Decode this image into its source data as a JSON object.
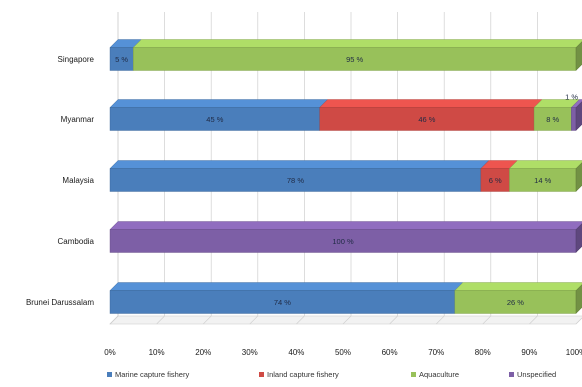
{
  "chart_data": {
    "type": "bar",
    "orientation": "horizontal",
    "stacked": "percent",
    "three_d": true,
    "categories": [
      "Singapore",
      "Myanmar",
      "Malaysia",
      "Cambodia",
      "Brunei Darussalam"
    ],
    "series": [
      {
        "name": "Marine capture fishery",
        "color": "#4a7ebb",
        "values": [
          5,
          45,
          78,
          0,
          74
        ],
        "labels": [
          "5 %",
          "45 %",
          "78 %",
          "",
          "74 %"
        ]
      },
      {
        "name": "Inland capture fishery",
        "color": "#cf4a45",
        "values": [
          0,
          46,
          6,
          0,
          0
        ],
        "labels": [
          "",
          "46 %",
          "6 %",
          "",
          ""
        ]
      },
      {
        "name": "Aquaculture",
        "color": "#98c15a",
        "values": [
          95,
          8,
          14,
          0,
          26
        ],
        "labels": [
          "95 %",
          "8 %",
          "14 %",
          "",
          "26 %"
        ]
      },
      {
        "name": "Unspecified",
        "color": "#7d5fa6",
        "values": [
          0,
          1,
          0,
          100,
          0
        ],
        "labels": [
          "",
          "1 %",
          "",
          "100 %",
          ""
        ]
      }
    ],
    "x_ticks": [
      "0%",
      "10%",
      "20%",
      "30%",
      "40%",
      "50%",
      "60%",
      "70%",
      "80%",
      "90%",
      "100%"
    ],
    "xlim": [
      0,
      100
    ],
    "grid": "vertical",
    "legend_position": "bottom"
  }
}
